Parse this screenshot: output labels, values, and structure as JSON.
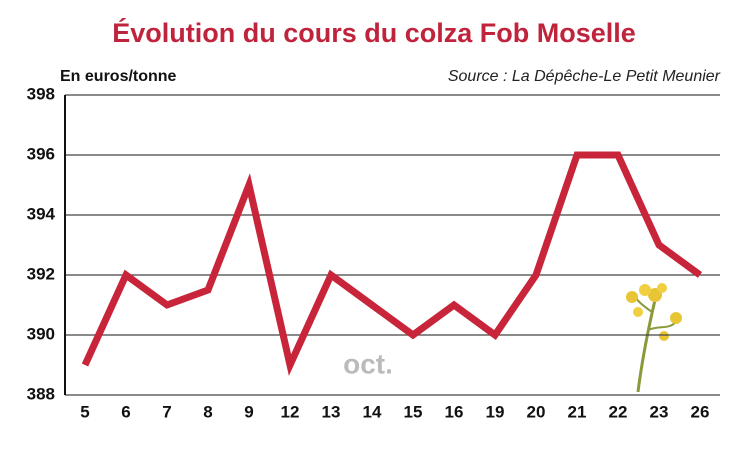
{
  "chart_data": {
    "type": "line",
    "title": "Évolution du cours du colza Fob Moselle",
    "y_label": "En euros/tonne",
    "source": "Source : La Dépêche-Le Petit Meunier",
    "annotation": "oct.",
    "categories": [
      "5",
      "6",
      "7",
      "8",
      "9",
      "12",
      "13",
      "14",
      "15",
      "16",
      "19",
      "20",
      "21",
      "22",
      "23",
      "26"
    ],
    "values": [
      389,
      392,
      391,
      391.5,
      395,
      389,
      392,
      391,
      390,
      391,
      390,
      392,
      396,
      396,
      393,
      392
    ],
    "color": "#c8243a",
    "ylim": [
      388,
      398
    ],
    "yticks": [
      388,
      390,
      392,
      394,
      396,
      398
    ],
    "grid": true
  }
}
